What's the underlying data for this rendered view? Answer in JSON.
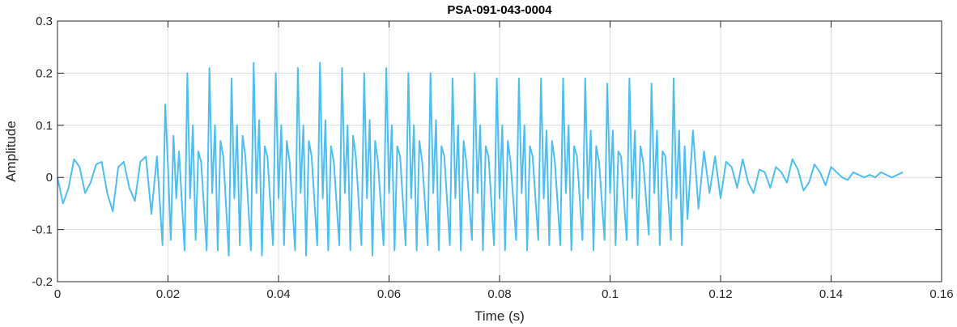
{
  "chart_data": {
    "type": "line",
    "title": "PSA-091-043-0004",
    "xlabel": "Time (s)",
    "ylabel": "Amplitude",
    "xlim": [
      0,
      0.16
    ],
    "ylim": [
      -0.2,
      0.3
    ],
    "xticks": [
      0,
      0.02,
      0.04,
      0.06,
      0.08,
      0.1,
      0.12,
      0.14,
      0.16
    ],
    "xtick_labels": [
      "0",
      "0.02",
      "0.04",
      "0.06",
      "0.08",
      "0.1",
      "0.12",
      "0.14",
      "0.16"
    ],
    "yticks": [
      -0.2,
      -0.1,
      0,
      0.1,
      0.2,
      0.3
    ],
    "ytick_labels": [
      "-0.2",
      "-0.1",
      "0",
      "0.1",
      "0.2",
      "0.3"
    ],
    "grid": true,
    "series": [
      {
        "color": "#4dbeee",
        "x": [
          0,
          0.001,
          0.002,
          0.003,
          0.004,
          0.005,
          0.006,
          0.007,
          0.008,
          0.009,
          0.01,
          0.011,
          0.012,
          0.013,
          0.014,
          0.015,
          0.016,
          0.017,
          0.018,
          0.019,
          0.0195,
          0.02,
          0.0205,
          0.021,
          0.0215,
          0.022,
          0.023,
          0.0235,
          0.024,
          0.0245,
          0.025,
          0.0255,
          0.026,
          0.027,
          0.0275,
          0.028,
          0.0285,
          0.029,
          0.0295,
          0.03,
          0.031,
          0.0315,
          0.032,
          0.0325,
          0.033,
          0.0335,
          0.034,
          0.035,
          0.0355,
          0.036,
          0.0365,
          0.037,
          0.0375,
          0.038,
          0.039,
          0.0395,
          0.04,
          0.0405,
          0.041,
          0.0415,
          0.042,
          0.043,
          0.0435,
          0.044,
          0.0445,
          0.045,
          0.0455,
          0.046,
          0.047,
          0.0475,
          0.048,
          0.0485,
          0.049,
          0.0495,
          0.05,
          0.051,
          0.0515,
          0.052,
          0.0525,
          0.053,
          0.0535,
          0.054,
          0.055,
          0.0555,
          0.056,
          0.0565,
          0.057,
          0.0575,
          0.058,
          0.059,
          0.0595,
          0.06,
          0.0605,
          0.061,
          0.0615,
          0.062,
          0.063,
          0.0635,
          0.064,
          0.0645,
          0.065,
          0.0655,
          0.066,
          0.067,
          0.0675,
          0.068,
          0.0685,
          0.069,
          0.0695,
          0.07,
          0.071,
          0.0715,
          0.072,
          0.0725,
          0.073,
          0.0735,
          0.074,
          0.075,
          0.0755,
          0.076,
          0.0765,
          0.077,
          0.0775,
          0.078,
          0.079,
          0.0795,
          0.08,
          0.0805,
          0.081,
          0.0815,
          0.082,
          0.083,
          0.0835,
          0.084,
          0.0845,
          0.085,
          0.0855,
          0.086,
          0.087,
          0.0875,
          0.088,
          0.0885,
          0.089,
          0.0895,
          0.09,
          0.091,
          0.0915,
          0.092,
          0.0925,
          0.093,
          0.0935,
          0.094,
          0.095,
          0.0955,
          0.096,
          0.0965,
          0.097,
          0.0975,
          0.098,
          0.099,
          0.0995,
          0.1,
          0.1005,
          0.101,
          0.1015,
          0.102,
          0.103,
          0.1035,
          0.104,
          0.1045,
          0.105,
          0.1055,
          0.106,
          0.107,
          0.1075,
          0.108,
          0.1085,
          0.109,
          0.1095,
          0.11,
          0.111,
          0.1115,
          0.112,
          0.1125,
          0.113,
          0.1135,
          0.114,
          0.115,
          0.116,
          0.117,
          0.118,
          0.119,
          0.12,
          0.121,
          0.122,
          0.123,
          0.124,
          0.125,
          0.126,
          0.127,
          0.128,
          0.129,
          0.13,
          0.131,
          0.132,
          0.133,
          0.134,
          0.135,
          0.136,
          0.137,
          0.138,
          0.139,
          0.14,
          0.141,
          0.142,
          0.143,
          0.144,
          0.145,
          0.146,
          0.147,
          0.148,
          0.149,
          0.15,
          0.151,
          0.152,
          0.153
        ],
        "y": [
          0,
          -0.05,
          -0.02,
          0.035,
          0.02,
          -0.03,
          -0.01,
          0.025,
          0.03,
          -0.03,
          -0.065,
          0.02,
          0.03,
          -0.02,
          -0.045,
          0.03,
          0.04,
          -0.07,
          0.04,
          -0.13,
          0.14,
          0.02,
          -0.12,
          0.08,
          -0.04,
          0.05,
          -0.14,
          0.2,
          -0.04,
          0.1,
          -0.12,
          0.05,
          0.03,
          -0.14,
          0.21,
          -0.03,
          0.1,
          -0.14,
          0.07,
          0.04,
          -0.15,
          0.19,
          -0.04,
          0.1,
          -0.13,
          0.08,
          0.04,
          -0.14,
          0.22,
          -0.03,
          0.11,
          -0.15,
          0.06,
          0.04,
          -0.13,
          0.2,
          -0.04,
          0.1,
          -0.13,
          0.07,
          0.03,
          -0.14,
          0.21,
          -0.03,
          0.1,
          -0.15,
          0.07,
          0.04,
          -0.13,
          0.22,
          -0.04,
          0.11,
          -0.14,
          0.06,
          0.03,
          -0.13,
          0.21,
          -0.03,
          0.1,
          -0.14,
          0.08,
          0.04,
          -0.13,
          0.2,
          -0.04,
          0.11,
          -0.15,
          0.07,
          0.03,
          -0.13,
          0.21,
          -0.03,
          0.1,
          -0.14,
          0.06,
          0.04,
          -0.13,
          0.2,
          -0.04,
          0.1,
          -0.14,
          0.07,
          0.03,
          -0.13,
          0.2,
          -0.03,
          0.11,
          -0.14,
          0.06,
          0.04,
          -0.13,
          0.19,
          -0.04,
          0.1,
          -0.14,
          0.07,
          0.03,
          -0.12,
          0.2,
          -0.03,
          0.1,
          -0.14,
          0.06,
          0.04,
          -0.13,
          0.19,
          -0.04,
          0.1,
          -0.14,
          0.07,
          0.03,
          -0.12,
          0.19,
          -0.03,
          0.1,
          -0.14,
          0.06,
          0.04,
          -0.12,
          0.19,
          -0.04,
          0.09,
          -0.13,
          0.07,
          0.03,
          -0.13,
          0.19,
          -0.03,
          0.1,
          -0.14,
          0.06,
          0.04,
          -0.12,
          0.19,
          -0.04,
          0.09,
          -0.14,
          0.06,
          0.03,
          -0.12,
          0.18,
          -0.03,
          0.09,
          -0.13,
          0.05,
          0.04,
          -0.12,
          0.19,
          -0.04,
          0.09,
          -0.13,
          0.06,
          0.03,
          -0.11,
          0.18,
          -0.03,
          0.09,
          -0.13,
          0.05,
          0.04,
          -0.12,
          0.19,
          -0.04,
          0.09,
          -0.13,
          0.06,
          -0.08,
          0.09,
          -0.06,
          0.05,
          -0.03,
          0.04,
          -0.04,
          0.03,
          0.02,
          -0.02,
          0.035,
          -0.01,
          -0.03,
          0.015,
          0.01,
          -0.02,
          0.02,
          0.01,
          -0.01,
          0.035,
          0.015,
          -0.025,
          -0.01,
          0.025,
          0.01,
          -0.015,
          0.02,
          0.01,
          0,
          -0.005,
          0.01,
          0.005,
          0,
          0.005,
          0,
          0.01,
          0.005,
          0,
          0.005,
          0.01
        ]
      }
    ]
  }
}
